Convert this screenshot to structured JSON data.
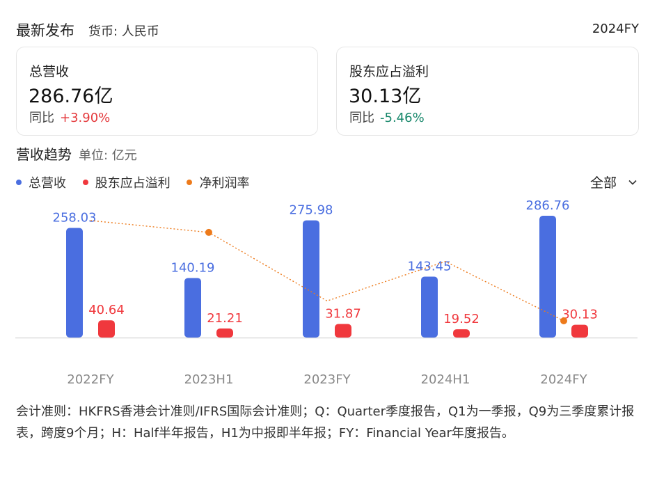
{
  "header": {
    "title": "最新发布",
    "currency": "货币: 人民币",
    "period": "2024FY"
  },
  "cards": [
    {
      "label": "总营收",
      "value": "286.76亿",
      "yoy_label": "同比",
      "yoy_value": "+3.90%"
    },
    {
      "label": "股东应占溢利",
      "value": "30.13亿",
      "yoy_label": "同比",
      "yoy_value": "-5.46%"
    }
  ],
  "trend": {
    "title": "营收趋势",
    "unit": "单位: 亿元"
  },
  "filter": {
    "label": "全部"
  },
  "colors": {
    "revenue": "#4a6ee0",
    "profit": "#f0383d",
    "margin": "#ed7a1b",
    "axis": "#dcdcdc",
    "tick": "#888888"
  },
  "chart_data": {
    "type": "bar",
    "categories": [
      "2022FY",
      "2023H1",
      "2023FY",
      "2024H1",
      "2024FY"
    ],
    "series": [
      {
        "name": "总营收",
        "type": "bar",
        "values": [
          258.03,
          140.19,
          275.98,
          143.45,
          286.76
        ]
      },
      {
        "name": "股东应占溢利",
        "type": "bar",
        "values": [
          40.64,
          21.21,
          31.87,
          19.52,
          30.13
        ]
      },
      {
        "name": "净利润率",
        "type": "line",
        "values": [
          15.75,
          15.13,
          11.55,
          13.61,
          10.51
        ]
      }
    ],
    "ylim": [
      0,
      300
    ],
    "margin_ylim": [
      10,
      16
    ],
    "legend_position": "top-left",
    "grid": false
  },
  "footnote": "会计准则：HKFRS香港会计准则/IFRS国际会计准则；Q：Quarter季度报告，Q1为一季报，Q9为三季度累计报表，跨度9个月；H：Half半年报告，H1为中报即半年报；FY：Financial Year年度报告。"
}
